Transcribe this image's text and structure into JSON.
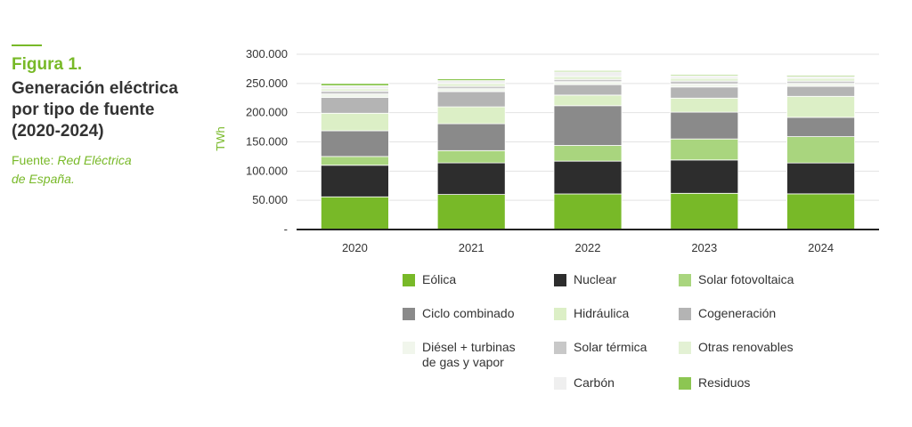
{
  "caption": {
    "figure_label": "Figura 1.",
    "title_lines": [
      "Generación eléctrica",
      "por tipo de fuente",
      "(2020-2024)"
    ],
    "source_prefix": "Fuente:",
    "source_lines": [
      "Red Eléctrica",
      "de España."
    ]
  },
  "chart_data": {
    "type": "bar",
    "stacked": true,
    "categories": [
      "2020",
      "2021",
      "2022",
      "2023",
      "2024"
    ],
    "ylabel": "TWh",
    "ylim": [
      0,
      300000
    ],
    "yticks": [
      0,
      50000,
      100000,
      150000,
      200000,
      250000,
      300000
    ],
    "ytick_labels": [
      "-",
      "50.000",
      "100.000",
      "150.000",
      "200.000",
      "250.000",
      "300.000"
    ],
    "grid": true,
    "legend_placement": "bottom",
    "series": [
      {
        "name": "Eólica",
        "color": "#78b928",
        "values": [
          56000,
          60000,
          61000,
          62000,
          61000
        ]
      },
      {
        "name": "Nuclear",
        "color": "#2d2d2d",
        "values": [
          54000,
          54000,
          56000,
          57000,
          53000
        ]
      },
      {
        "name": "Solar fotovoltaica",
        "color": "#a9d57e",
        "values": [
          15000,
          21000,
          27000,
          36000,
          45000
        ]
      },
      {
        "name": "Ciclo combinado",
        "color": "#8a8a8a",
        "values": [
          44000,
          46000,
          68000,
          46000,
          33000
        ]
      },
      {
        "name": "Hidráulica",
        "color": "#dcefc6",
        "values": [
          30000,
          29000,
          18000,
          24000,
          36000
        ]
      },
      {
        "name": "Cogeneración",
        "color": "#b4b4b4",
        "values": [
          27000,
          26000,
          18000,
          19000,
          17000
        ]
      },
      {
        "name": "Diésel + turbinas\nde gas y vapor",
        "color": "#f1f6ec",
        "values": [
          6000,
          5000,
          5000,
          5000,
          5000
        ]
      },
      {
        "name": "Solar térmica",
        "color": "#c8c8c8",
        "values": [
          5000,
          4000,
          4000,
          5000,
          4000
        ]
      },
      {
        "name": "Otras renovables",
        "color": "#e3f1d4",
        "values": [
          4000,
          5000,
          5000,
          5000,
          5000
        ]
      },
      {
        "name": "Carbón",
        "color": "#efefef",
        "values": [
          5000,
          5000,
          8000,
          4000,
          3000
        ]
      },
      {
        "name": "Residuos",
        "color": "#8cc652",
        "values": [
          4000,
          3000,
          2000,
          2000,
          2000
        ]
      }
    ]
  }
}
